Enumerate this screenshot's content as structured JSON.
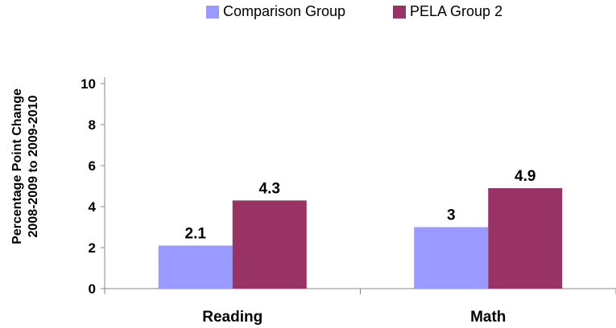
{
  "chart_data": {
    "type": "bar",
    "categories": [
      "Reading",
      "Math"
    ],
    "series": [
      {
        "name": "Comparison Group",
        "values": [
          2.1,
          3
        ],
        "labels": [
          "2.1",
          "3"
        ],
        "color": "#9999ff"
      },
      {
        "name": "PELA Group 2",
        "values": [
          4.3,
          4.9
        ],
        "labels": [
          "4.3",
          "4.9"
        ],
        "color": "#993366"
      }
    ],
    "ylabel_line1": "Percentage Point Change",
    "ylabel_line2": "2008-2009 to 2009-2010",
    "ylim": [
      0,
      10
    ],
    "yticks": [
      "0",
      "2",
      "4",
      "6",
      "8",
      "10"
    ],
    "grid": false,
    "legend_position": "top"
  }
}
